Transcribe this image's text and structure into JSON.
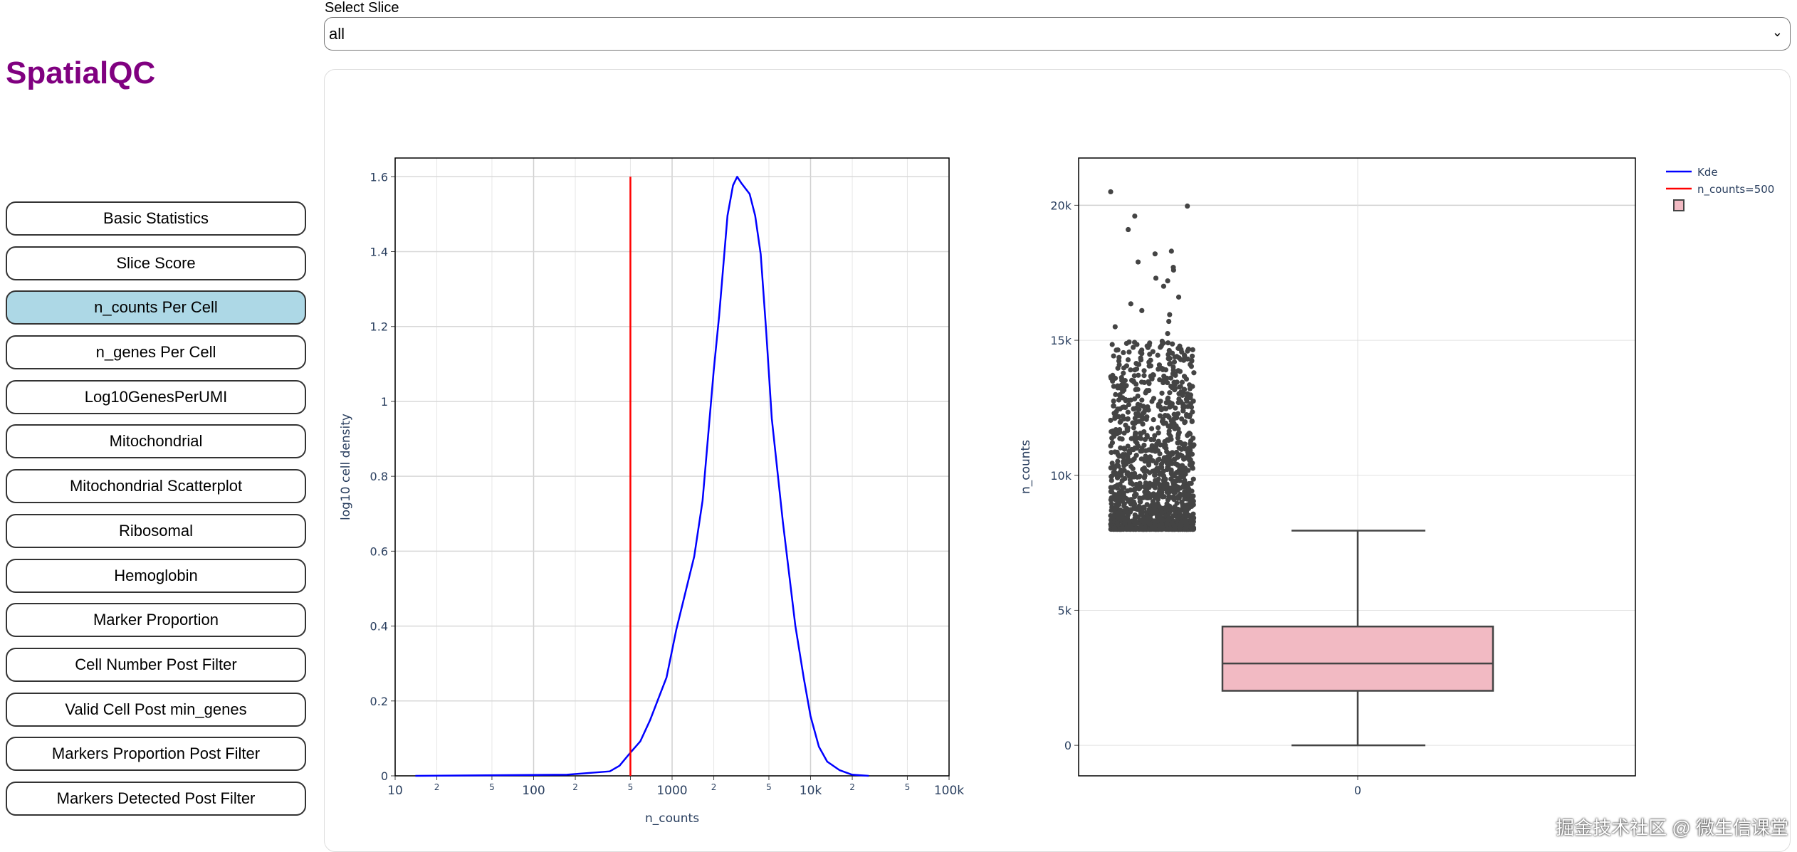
{
  "app": {
    "title": "SpatialQC"
  },
  "slice_select": {
    "label": "Select Slice",
    "value": "all"
  },
  "sidebar": {
    "items": [
      {
        "label": "Basic Statistics",
        "active": false
      },
      {
        "label": "Slice Score",
        "active": false
      },
      {
        "label": "n_counts Per Cell",
        "active": true
      },
      {
        "label": "n_genes Per Cell",
        "active": false
      },
      {
        "label": "Log10GenesPerUMI",
        "active": false
      },
      {
        "label": "Mitochondrial",
        "active": false
      },
      {
        "label": "Mitochondrial Scatterplot",
        "active": false
      },
      {
        "label": "Ribosomal",
        "active": false
      },
      {
        "label": "Hemoglobin",
        "active": false
      },
      {
        "label": "Marker Proportion",
        "active": false
      },
      {
        "label": "Cell Number Post Filter",
        "active": false
      },
      {
        "label": "Valid Cell Post min_genes",
        "active": false
      },
      {
        "label": "Markers Proportion Post Filter",
        "active": false
      },
      {
        "label": "Markers Detected Post Filter",
        "active": false
      }
    ]
  },
  "colors": {
    "title": "#800080",
    "active_button": "#add8e6",
    "kde": "#0000ff",
    "threshold": "#ff0000",
    "box_fill": "#f2bac3",
    "box_line": "#444444"
  },
  "watermark": "掘金技术社区 @ 微生信课堂",
  "chart_data": [
    {
      "type": "line",
      "xlabel": "n_counts",
      "ylabel": "log10 cell density",
      "xscale": "log",
      "xlim": [
        10,
        100000
      ],
      "ylim": [
        0,
        1.65
      ],
      "grid": true,
      "xticks": [
        {
          "value": 10,
          "label": "10"
        },
        {
          "value": 20,
          "label": "2"
        },
        {
          "value": 50,
          "label": "5"
        },
        {
          "value": 100,
          "label": "100"
        },
        {
          "value": 200,
          "label": "2"
        },
        {
          "value": 500,
          "label": "5"
        },
        {
          "value": 1000,
          "label": "1000"
        },
        {
          "value": 2000,
          "label": "2"
        },
        {
          "value": 5000,
          "label": "5"
        },
        {
          "value": 10000,
          "label": "10k"
        },
        {
          "value": 20000,
          "label": "2"
        },
        {
          "value": 50000,
          "label": "5"
        },
        {
          "value": 100000,
          "label": "100k"
        }
      ],
      "yticks": [
        {
          "value": 0,
          "label": "0"
        },
        {
          "value": 0.2,
          "label": "0.2"
        },
        {
          "value": 0.4,
          "label": "0.4"
        },
        {
          "value": 0.6,
          "label": "0.6"
        },
        {
          "value": 0.8,
          "label": "0.8"
        },
        {
          "value": 1,
          "label": "1"
        },
        {
          "value": 1.2,
          "label": "1.2"
        },
        {
          "value": 1.4,
          "label": "1.4"
        },
        {
          "value": 1.6,
          "label": "1.6"
        }
      ],
      "series": [
        {
          "name": "Kde",
          "color": "#0000ff",
          "x": [
            14,
            174,
            355,
            417,
            500,
            589,
            692,
            912,
            1072,
            1445,
            1660,
            1995,
            2188,
            2512,
            2754,
            2951,
            3162,
            3631,
            3981,
            4365,
            4786,
            5248,
            6310,
            7762,
            8913,
            10000,
            11482,
            13183,
            16218,
            19953,
            26303
          ],
          "y": [
            0,
            0.003,
            0.012,
            0.027,
            0.062,
            0.092,
            0.148,
            0.263,
            0.39,
            0.586,
            0.735,
            1.08,
            1.23,
            1.496,
            1.577,
            1.6,
            1.583,
            1.554,
            1.496,
            1.393,
            1.185,
            0.954,
            0.678,
            0.401,
            0.263,
            0.159,
            0.078,
            0.038,
            0.015,
            0.003,
            0
          ]
        },
        {
          "name": "n_counts=500",
          "color": "#ff0000",
          "x": [
            500,
            500
          ],
          "y": [
            0,
            1.6
          ]
        }
      ]
    },
    {
      "type": "box",
      "ylabel": "n_counts",
      "xticks": [
        {
          "value": 0,
          "label": "0"
        }
      ],
      "ylim": [
        -1130,
        21750
      ],
      "grid": true,
      "yticks": [
        {
          "value": 0,
          "label": "0"
        },
        {
          "value": 5000,
          "label": "5k"
        },
        {
          "value": 10000,
          "label": "10k"
        },
        {
          "value": 15000,
          "label": "15k"
        },
        {
          "value": 20000,
          "label": "20k"
        }
      ],
      "box": {
        "category": "0",
        "min": 0,
        "q1": 2020,
        "median": 3030,
        "q3": 4400,
        "max": 7950
      },
      "outliers": {
        "range": [
          8000,
          20600
        ],
        "top_values": [
          20500,
          19970,
          19600,
          19100,
          18300,
          18200,
          17900,
          17700,
          17600,
          17300,
          17200,
          17000,
          16600,
          16350,
          16100,
          15950,
          15700,
          15500,
          15250,
          14900,
          14600
        ]
      },
      "legend": {
        "placement": "top-right",
        "entries": [
          "Kde",
          "n_counts=500",
          ""
        ]
      }
    }
  ]
}
